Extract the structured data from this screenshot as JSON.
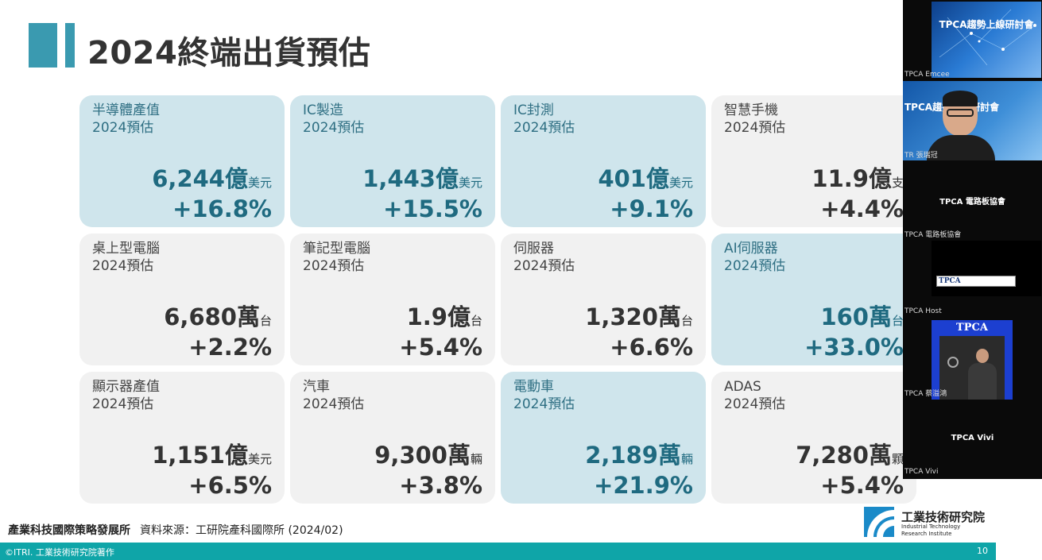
{
  "slide": {
    "title": "2024終端出貨預估",
    "accent_color": "#3a9ab0",
    "highlight_color": "#cfe5ec"
  },
  "cards": [
    {
      "label": "半導體產值",
      "sub": "2024預估",
      "value": "6,244億",
      "unit": "美元",
      "growth": "+16.8%",
      "highlight": true
    },
    {
      "label": "IC製造",
      "sub": "2024預估",
      "value": "1,443億",
      "unit": "美元",
      "growth": "+15.5%",
      "highlight": true
    },
    {
      "label": "IC封測",
      "sub": "2024預估",
      "value": "401億",
      "unit": "美元",
      "growth": "+9.1%",
      "highlight": true
    },
    {
      "label": "智慧手機",
      "sub": "2024預估",
      "value": "11.9億",
      "unit": "支",
      "growth": "+4.4%",
      "highlight": false
    },
    {
      "label": "桌上型電腦",
      "sub": "2024預估",
      "value": "6,680萬",
      "unit": "台",
      "growth": "+2.2%",
      "highlight": false
    },
    {
      "label": "筆記型電腦",
      "sub": "2024預估",
      "value": "1.9億",
      "unit": "台",
      "growth": "+5.4%",
      "highlight": false
    },
    {
      "label": "伺服器",
      "sub": "2024預估",
      "value": "1,320萬",
      "unit": "台",
      "growth": "+6.6%",
      "highlight": false
    },
    {
      "label": "AI伺服器",
      "sub": "2024預估",
      "value": "160萬",
      "unit": "台",
      "growth": "+33.0%",
      "highlight": true
    },
    {
      "label": "顯示器產值",
      "sub": "2024預估",
      "value": "1,151億",
      "unit": "美元",
      "growth": "+6.5%",
      "highlight": false
    },
    {
      "label": "汽車",
      "sub": "2024預估",
      "value": "9,300萬",
      "unit": "輛",
      "growth": "+3.8%",
      "highlight": false
    },
    {
      "label": "電動車",
      "sub": "2024預估",
      "value": "2,189萬",
      "unit": "輛",
      "growth": "+21.9%",
      "highlight": true
    },
    {
      "label": "ADAS",
      "sub": "2024預估",
      "value": "7,280萬",
      "unit": "顆",
      "growth": "+5.4%",
      "highlight": false
    }
  ],
  "footer": {
    "org": "產業科技國際策略發展所",
    "source": "資料來源：工研院產科國際所 (2024/02)",
    "copyright": "©ITRI. 工業技術研究院著作",
    "page_number": "10",
    "bar_color": "#0fa5a8"
  },
  "logo": {
    "name": "工業技術研究院",
    "en_line1": "Industrial Technology",
    "en_line2": "Research Institute"
  },
  "video_panel": {
    "tiles": [
      {
        "name": "TPCA Emcee",
        "banner": "TPCA趨勢上線研討會"
      },
      {
        "name": "TR 張瑞冠",
        "banner": "TPCA趨勢上線研討會"
      },
      {
        "name": "TPCA 電路板協會",
        "center": "TPCA 電路板協會"
      },
      {
        "name": "TPCA Host",
        "banner": "TPCA"
      },
      {
        "name": "TPCA 蔡溢鴻",
        "banner": "TPCA"
      },
      {
        "name": "TPCA Vivi",
        "center": "TPCA Vivi"
      }
    ]
  }
}
